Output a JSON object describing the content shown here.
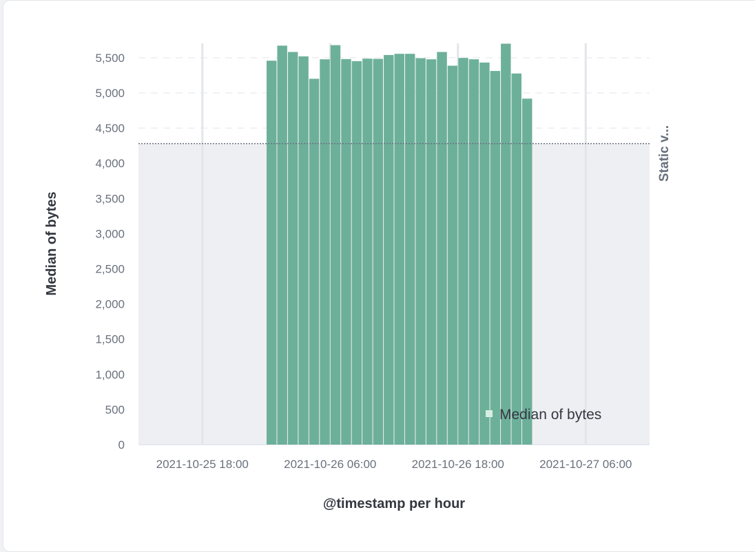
{
  "chart_data": {
    "type": "bar",
    "xlabel": "@timestamp per hour",
    "ylabel": "Median of bytes",
    "ylim": [
      0,
      5700
    ],
    "grid": true,
    "legend_position": "bottom-right",
    "y_ticks": [
      "0",
      "500",
      "1,000",
      "1,500",
      "2,000",
      "2,500",
      "3,000",
      "3,500",
      "4,000",
      "4,500",
      "5,000",
      "5,500"
    ],
    "x_ticks": [
      "2021-10-25 18:00",
      "2021-10-26 06:00",
      "2021-10-26 18:00",
      "2021-10-27 06:00"
    ],
    "x_start": "2021-10-25 12:00",
    "x_end": "2021-10-27 12:00",
    "series": [
      {
        "name": "Median of bytes",
        "color": "#6db09a",
        "x": [
          "2021-10-26 00:00",
          "2021-10-26 01:00",
          "2021-10-26 02:00",
          "2021-10-26 03:00",
          "2021-10-26 04:00",
          "2021-10-26 05:00",
          "2021-10-26 06:00",
          "2021-10-26 07:00",
          "2021-10-26 08:00",
          "2021-10-26 09:00",
          "2021-10-26 10:00",
          "2021-10-26 11:00",
          "2021-10-26 12:00",
          "2021-10-26 13:00",
          "2021-10-26 14:00",
          "2021-10-26 15:00",
          "2021-10-26 16:00",
          "2021-10-26 17:00",
          "2021-10-26 18:00",
          "2021-10-26 19:00",
          "2021-10-26 20:00",
          "2021-10-26 21:00",
          "2021-10-26 22:00",
          "2021-10-26 23:00",
          "2021-10-27 00:00"
        ],
        "values": [
          5458,
          5672,
          5582,
          5520,
          5201,
          5478,
          5679,
          5481,
          5452,
          5487,
          5484,
          5539,
          5556,
          5556,
          5494,
          5478,
          5582,
          5387,
          5497,
          5478,
          5432,
          5312,
          5720,
          5276,
          4919
        ]
      }
    ],
    "reference_line": {
      "label": "Static v...",
      "value": 4280,
      "fill_below": "#eeeff2"
    }
  }
}
